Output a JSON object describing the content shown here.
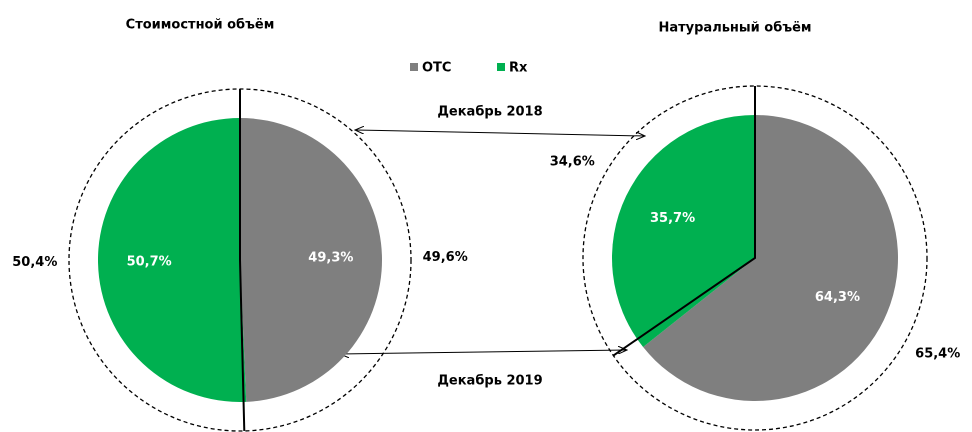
{
  "chart_data": {
    "type": "pie",
    "categories": [
      "OTC",
      "Rx"
    ],
    "colors": [
      "#7f7f7f",
      "#00b050"
    ],
    "annotations": [
      "Декабрь 2018",
      "Декабрь 2019"
    ],
    "charts": [
      {
        "title": "Стоимостной объём",
        "values": [
          49.3,
          50.7
        ],
        "value_labels": [
          "49,3%",
          "50,7%"
        ],
        "outer_values": [
          49.6,
          50.4
        ],
        "outer_value_labels": [
          "49,6%",
          "50,4%"
        ]
      },
      {
        "title": "Натуральный объём",
        "values": [
          64.3,
          35.7
        ],
        "value_labels": [
          "64,3%",
          "35,7%"
        ],
        "outer_values": [
          65.4,
          34.6
        ],
        "outer_value_labels": [
          "65,4%",
          "34,6%"
        ]
      }
    ]
  }
}
